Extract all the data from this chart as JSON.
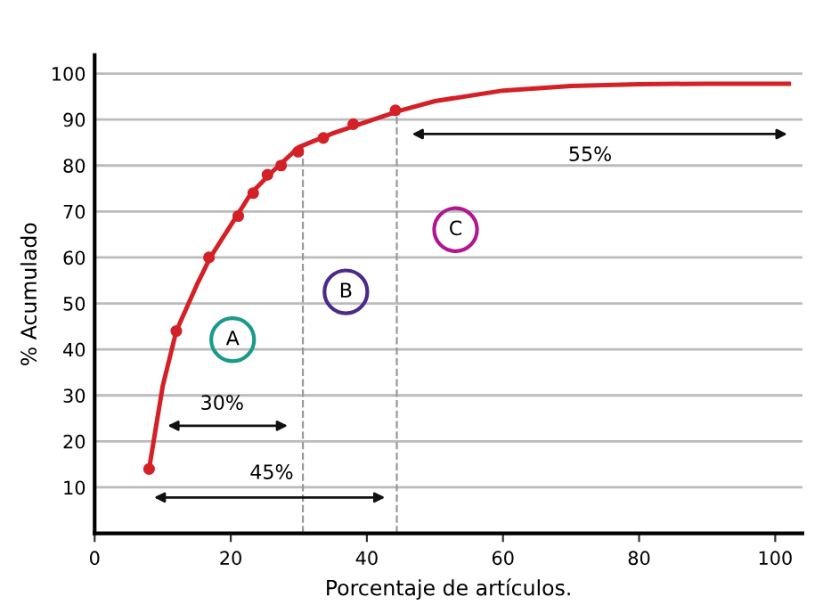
{
  "chart_data": {
    "type": "line",
    "xlabel": "Porcentaje de artículos.",
    "ylabel": "% Acumulado",
    "series": [
      {
        "color": "#d42027",
        "marker": "none",
        "x": [
          8,
          10,
          12,
          15,
          17,
          20,
          23,
          26,
          30,
          35,
          40,
          45,
          50,
          60,
          70,
          80,
          90,
          102
        ],
        "values": [
          14,
          32,
          44,
          54,
          60,
          67,
          74,
          78.5,
          84,
          87,
          89.5,
          92,
          94,
          96.3,
          97.3,
          97.7,
          97.8,
          97.8
        ]
      },
      {
        "type": "scatter",
        "color": "#d42027",
        "marker": "circle",
        "x": [
          8,
          12,
          16.8,
          21.1,
          23.3,
          25.4,
          27.4,
          29.9,
          33.6,
          38,
          44.2
        ],
        "values": [
          14,
          44,
          60,
          69,
          74,
          78,
          80,
          83,
          86,
          89,
          92
        ]
      }
    ],
    "xlim": [
      0,
      104
    ],
    "ylim": [
      0,
      104
    ],
    "xticks": [
      0,
      20,
      40,
      60,
      80,
      100
    ],
    "yticks": [
      10,
      20,
      30,
      40,
      50,
      60,
      70,
      80,
      90,
      100
    ],
    "grid": "y",
    "ref_lines": [
      {
        "axis": "x",
        "value": 30.6,
        "color": "#999999",
        "line_style": "dashed"
      },
      {
        "axis": "x",
        "value": 44.4,
        "color": "#999999",
        "line_style": "dashed"
      }
    ],
    "annotations": [
      "30%",
      "45%",
      "55%",
      "A",
      "B",
      "C"
    ]
  }
}
